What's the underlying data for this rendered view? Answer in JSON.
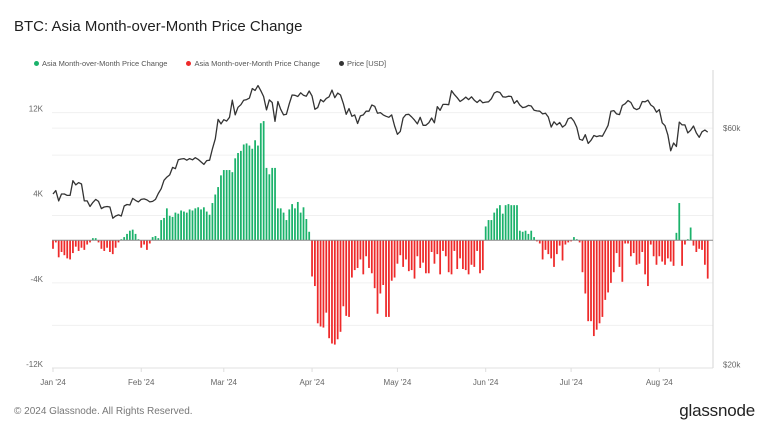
{
  "title": "BTC: Asia Month-over-Month Price Change",
  "footer": {
    "copyright": "© 2024 Glassnode. All Rights Reserved.",
    "logo": "glassnode"
  },
  "chart_data": {
    "type": "bar",
    "title": "BTC: Asia Month-over-Month Price Change",
    "legend_position": "top-left",
    "grid": true,
    "legend": [
      {
        "label": "Asia Month-over-Month Price Change",
        "color": "#1bb26b"
      },
      {
        "label": "Asia Month-over-Month Price Change",
        "color": "#ee2a2a"
      },
      {
        "label": "Price [USD]",
        "color": "#333333"
      }
    ],
    "x_start": "2024-01-01",
    "x_step": "1 day",
    "x_ticks": [
      {
        "label": "Jan '24",
        "date": "2024-01-01"
      },
      {
        "label": "Feb '24",
        "date": "2024-02-01"
      },
      {
        "label": "Mar '24",
        "date": "2024-03-01"
      },
      {
        "label": "Apr '24",
        "date": "2024-04-01"
      },
      {
        "label": "May '24",
        "date": "2024-05-01"
      },
      {
        "label": "Jun '24",
        "date": "2024-06-01"
      },
      {
        "label": "Jul '24",
        "date": "2024-07-01"
      },
      {
        "label": "Aug '24",
        "date": "2024-08-01"
      }
    ],
    "y_left": {
      "ylim": [
        -12000,
        16000
      ],
      "ticks": [
        {
          "value": 12000,
          "label": "12K"
        },
        {
          "value": 4000,
          "label": "4K"
        },
        {
          "value": -4000,
          "label": "-4K"
        },
        {
          "value": -12000,
          "label": "-12K"
        }
      ]
    },
    "y_right": {
      "scale": "log",
      "ylim": [
        19700,
        78600
      ],
      "ticks": [
        {
          "value": 60000,
          "label": "$60k"
        },
        {
          "value": 20000,
          "label": "$20k"
        }
      ]
    },
    "colors": {
      "positive": "#1bb26b",
      "negative": "#ee2a2a",
      "price": "#333333"
    },
    "series": [
      {
        "name": "Asia Month-over-Month Price Change",
        "type": "bar",
        "axis": "left",
        "values": [
          -800,
          -200,
          -1600,
          -1100,
          -1400,
          -1700,
          -1800,
          -1200,
          -600,
          -1000,
          -700,
          -900,
          -400,
          -200,
          200,
          200,
          -200,
          -800,
          -1000,
          -700,
          -1100,
          -1300,
          -700,
          -200,
          100,
          300,
          600,
          900,
          1000,
          600,
          100,
          -700,
          -400,
          -900,
          -300,
          300,
          400,
          200,
          1900,
          2100,
          3000,
          2300,
          2200,
          2600,
          2500,
          2800,
          2700,
          2600,
          2900,
          2800,
          3000,
          3100,
          2900,
          3100,
          2700,
          2400,
          3500,
          4300,
          5000,
          6100,
          6600,
          6600,
          6600,
          6400,
          7700,
          8200,
          8400,
          9000,
          9100,
          8900,
          8600,
          9400,
          8900,
          11000,
          11200,
          6800,
          6200,
          6800,
          6800,
          3000,
          3000,
          2600,
          1900,
          2900,
          3400,
          3000,
          3600,
          2600,
          3100,
          2000,
          800,
          -3400,
          -4300,
          -7800,
          -8100,
          -8200,
          -6800,
          -9200,
          -9700,
          -9800,
          -9300,
          -8600,
          -6200,
          -7100,
          -7200,
          -3500,
          -2800,
          -2600,
          -1800,
          -3200,
          -1500,
          -2600,
          -3100,
          -4500,
          -6900,
          -5000,
          -4200,
          -7200,
          -7200,
          -3800,
          -3500,
          -2200,
          -1400,
          -2500,
          -1800,
          -2900,
          -2800,
          -3600,
          -1500,
          -2600,
          -2100,
          -3100,
          -3100,
          -1100,
          -2200,
          -1300,
          -3200,
          -1000,
          -1500,
          -3000,
          -3200,
          -1000,
          -2700,
          -1700,
          -2700,
          -2800,
          -3200,
          -2300,
          -2500,
          -1000,
          -3100,
          -2800,
          1300,
          1900,
          1900,
          2600,
          3000,
          3300,
          2500,
          3300,
          3400,
          3300,
          3300,
          3300,
          900,
          800,
          900,
          600,
          900,
          300,
          -100,
          -300,
          -1800,
          -900,
          -1300,
          -1700,
          -2500,
          -1300,
          -500,
          -1900,
          -400,
          -200,
          -100,
          300,
          100,
          -200,
          -3000,
          -5000,
          -7600,
          -7600,
          -9000,
          -8400,
          -7800,
          -7200,
          -5600,
          -4900,
          -4000,
          -3000,
          -1200,
          -2500,
          -3900,
          -300,
          -300,
          -1500,
          -1200,
          -2300,
          -2200,
          -1100,
          -3200,
          -4300,
          -400,
          -1500,
          -2300,
          -1500,
          -2000,
          -2300,
          -1700,
          -2000,
          -2400,
          700,
          3500,
          -2400,
          -400,
          100,
          1200,
          -500,
          -1100,
          -800,
          -900,
          -2300,
          -3600
        ]
      },
      {
        "name": "Price [USD]",
        "type": "line",
        "axis": "right",
        "values": [
          44200,
          44900,
          42800,
          44200,
          44200,
          43900,
          43900,
          47000,
          46100,
          46600,
          46300,
          42800,
          42800,
          41700,
          42500,
          43100,
          42700,
          41300,
          41600,
          41700,
          41600,
          39500,
          39900,
          40100,
          39900,
          41800,
          42100,
          42000,
          43300,
          42900,
          42600,
          43100,
          43200,
          43000,
          42600,
          42700,
          43100,
          44300,
          45300,
          47100,
          47800,
          48300,
          50000,
          49700,
          51800,
          52000,
          52100,
          51700,
          52100,
          51800,
          52300,
          51900,
          51300,
          50700,
          51600,
          51700,
          54500,
          57100,
          62500,
          61200,
          62400,
          62000,
          63100,
          68300,
          63800,
          66100,
          66900,
          68300,
          68500,
          69000,
          72100,
          71500,
          73100,
          71400,
          69500,
          65300,
          68400,
          67600,
          61900,
          67900,
          65500,
          63800,
          64000,
          67200,
          70000,
          69900,
          69500,
          70700,
          69900,
          69600,
          71300,
          69700,
          65500,
          66000,
          68500,
          67800,
          68900,
          69400,
          71600,
          69100,
          70600,
          70000,
          67200,
          64000,
          65700,
          63400,
          63800,
          61300,
          63500,
          63800,
          64900,
          64900,
          66800,
          66400,
          64300,
          64500,
          63800,
          63400,
          63100,
          63800,
          60600,
          58300,
          59100,
          62900,
          63900,
          64000,
          63200,
          62300,
          61200,
          63100,
          60800,
          60800,
          61500,
          62900,
          61500,
          66300,
          65200,
          67000,
          67000,
          66900,
          71400,
          70100,
          69100,
          67900,
          68500,
          69300,
          68500,
          69400,
          68300,
          67600,
          68400,
          67500,
          67700,
          67800,
          68800,
          70600,
          71100,
          70800,
          69400,
          69300,
          69600,
          69500,
          67300,
          68200,
          66800,
          66000,
          66200,
          66700,
          66500,
          65200,
          65000,
          64900,
          64100,
          64300,
          63200,
          60300,
          61800,
          60900,
          61600,
          60300,
          60900,
          62700,
          63000,
          62000,
          60200,
          57000,
          56700,
          58200,
          55900,
          56700,
          58000,
          57700,
          57900,
          57800,
          59200,
          60800,
          64900,
          65100,
          64100,
          63900,
          66700,
          67200,
          68200,
          67600,
          65900,
          65400,
          65800,
          67900,
          67800,
          68300,
          66800,
          66200,
          64600,
          65400,
          61500,
          60700,
          58100,
          54000,
          56000,
          55100,
          61700,
          60900,
          60900,
          58700,
          59400,
          60600,
          58700,
          57500,
          59000,
          59500,
          58900
        ]
      }
    ]
  }
}
